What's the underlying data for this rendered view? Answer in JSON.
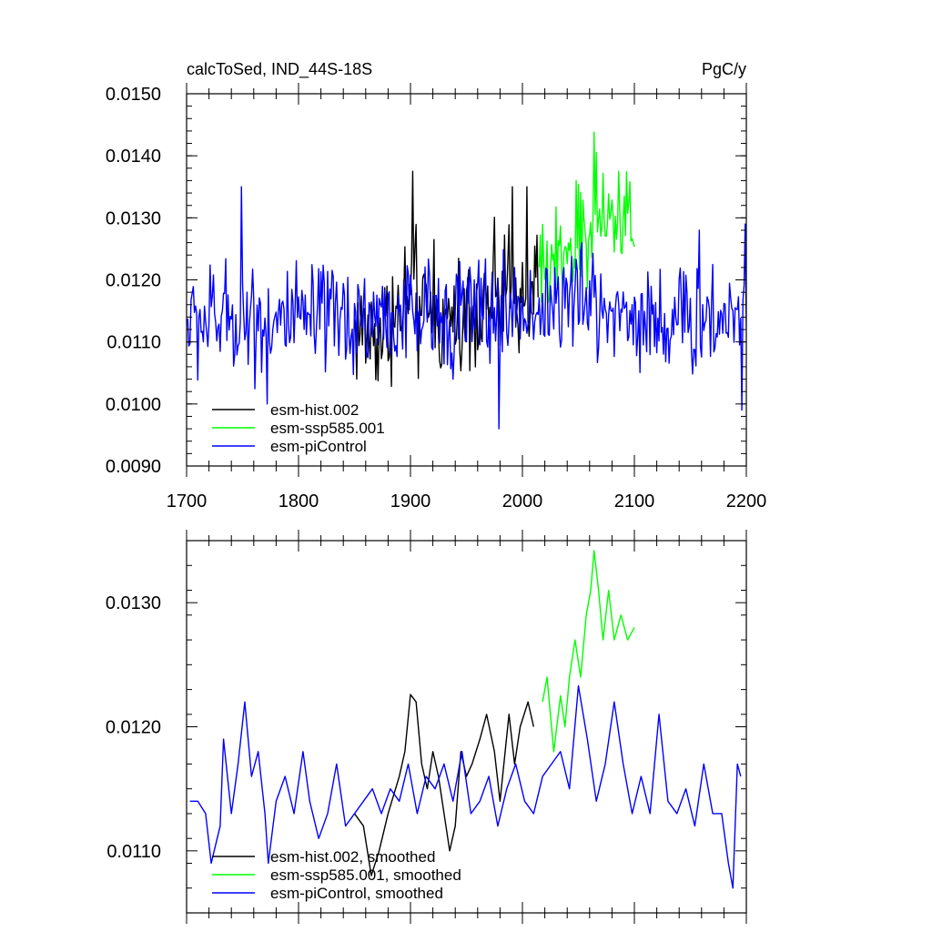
{
  "chart_data": [
    {
      "type": "line",
      "title": "calcToSed, IND_44S-18S",
      "units": "PgC/y",
      "xlim": [
        1700,
        2200
      ],
      "ylim": [
        0.009,
        0.015
      ],
      "x_ticks": [
        1700,
        1800,
        1900,
        2000,
        2100,
        2200
      ],
      "x_tick_labels": [
        "1700",
        "1800",
        "1900",
        "2000",
        "2100",
        "2200"
      ],
      "y_ticks": [
        0.009,
        0.01,
        0.011,
        0.012,
        0.013,
        0.014,
        0.015
      ],
      "y_tick_labels": [
        "0.0090",
        "0.0100",
        "0.0110",
        "0.0120",
        "0.0130",
        "0.0140",
        "0.0150"
      ],
      "legend_position": "bottom-left",
      "series": [
        {
          "name": "esm-hist.002",
          "color": "#000000",
          "x_range": [
            1850,
            2014
          ],
          "base_points": [
            [
              1850,
              0.0112
            ],
            [
              1870,
              0.0111
            ],
            [
              1890,
              0.0114
            ],
            [
              1900,
              0.0118
            ],
            [
              1910,
              0.0115
            ],
            [
              1930,
              0.0113
            ],
            [
              1950,
              0.0115
            ],
            [
              1970,
              0.0117
            ],
            [
              1990,
              0.0117
            ],
            [
              2014,
              0.0119
            ]
          ],
          "noise": 0.0006,
          "spikes": [
            [
              1902,
              0.01375
            ],
            [
              1921,
              0.01265
            ],
            [
              1991,
              0.0135
            ],
            [
              2004,
              0.0135
            ]
          ],
          "min_clip": 0.0102
        },
        {
          "name": "esm-ssp585.001",
          "color": "#00ff00",
          "x_range": [
            2015,
            2100
          ],
          "base_points": [
            [
              2015,
              0.0121
            ],
            [
              2030,
              0.0123
            ],
            [
              2050,
              0.0127
            ],
            [
              2065,
              0.013
            ],
            [
              2080,
              0.0129
            ],
            [
              2100,
              0.0129
            ]
          ],
          "noise": 0.0005,
          "spikes": [
            [
              2064,
              0.01438
            ],
            [
              2048,
              0.0136
            ],
            [
              2086,
              0.01375
            ]
          ],
          "min_clip": 0.0116
        },
        {
          "name": "esm-piControl",
          "color": "#0000ff",
          "x_range": [
            1701,
            2200
          ],
          "base_points": [
            [
              1700,
              0.0113
            ],
            [
              1750,
              0.0114
            ],
            [
              1800,
              0.0113
            ],
            [
              1850,
              0.0114
            ],
            [
              1900,
              0.0114
            ],
            [
              1950,
              0.0115
            ],
            [
              2000,
              0.0115
            ],
            [
              2050,
              0.0117
            ],
            [
              2100,
              0.0114
            ],
            [
              2150,
              0.0113
            ],
            [
              2200,
              0.0115
            ]
          ],
          "noise": 0.00055,
          "spikes": [
            [
              1749,
              0.0135
            ],
            [
              1979,
              0.0096
            ],
            [
              1772,
              0.01
            ],
            [
              2196,
              0.0099
            ],
            [
              2199,
              0.0129
            ],
            [
              2158,
              0.0128
            ]
          ],
          "min_clip": 0.0097
        }
      ]
    },
    {
      "type": "line",
      "xlim": [
        1700,
        2200
      ],
      "ylim": [
        0.0105,
        0.0135
      ],
      "y_ticks": [
        0.011,
        0.012,
        0.013
      ],
      "y_tick_labels": [
        "0.0110",
        "0.0120",
        "0.0130"
      ],
      "legend_position": "bottom-left",
      "series": [
        {
          "name": "esm-hist.002, smoothed",
          "color": "#000000",
          "x_range": [
            1850,
            2010
          ],
          "points": [
            [
              1850,
              0.0113
            ],
            [
              1858,
              0.0112
            ],
            [
              1865,
              0.0108
            ],
            [
              1872,
              0.011
            ],
            [
              1880,
              0.0113
            ],
            [
              1890,
              0.0116
            ],
            [
              1895,
              0.0118
            ],
            [
              1900,
              0.01226
            ],
            [
              1905,
              0.0122
            ],
            [
              1910,
              0.0117
            ],
            [
              1915,
              0.0115
            ],
            [
              1920,
              0.0118
            ],
            [
              1925,
              0.0116
            ],
            [
              1930,
              0.0113
            ],
            [
              1935,
              0.011
            ],
            [
              1940,
              0.0112
            ],
            [
              1945,
              0.0118
            ],
            [
              1950,
              0.0116
            ],
            [
              1955,
              0.0117
            ],
            [
              1962,
              0.0119
            ],
            [
              1968,
              0.0121
            ],
            [
              1975,
              0.0118
            ],
            [
              1980,
              0.0114
            ],
            [
              1988,
              0.0121
            ],
            [
              1993,
              0.0117
            ],
            [
              1998,
              0.012
            ],
            [
              2005,
              0.0122
            ],
            [
              2010,
              0.012
            ]
          ]
        },
        {
          "name": "esm-ssp585.001, smoothed",
          "color": "#00ff00",
          "x_range": [
            2018,
            2100
          ],
          "points": [
            [
              2018,
              0.0122
            ],
            [
              2022,
              0.0124
            ],
            [
              2028,
              0.0118
            ],
            [
              2034,
              0.01225
            ],
            [
              2038,
              0.012
            ],
            [
              2042,
              0.0124
            ],
            [
              2047,
              0.0127
            ],
            [
              2052,
              0.0124
            ],
            [
              2057,
              0.0129
            ],
            [
              2061,
              0.0131
            ],
            [
              2064,
              0.01342
            ],
            [
              2068,
              0.0131
            ],
            [
              2072,
              0.0127
            ],
            [
              2077,
              0.0131
            ],
            [
              2082,
              0.0127
            ],
            [
              2088,
              0.0129
            ],
            [
              2094,
              0.0127
            ],
            [
              2100,
              0.0128
            ]
          ]
        },
        {
          "name": "esm-piControl, smoothed",
          "color": "#0000ff",
          "x_range": [
            1703,
            2195
          ],
          "points": [
            [
              1703,
              0.0114
            ],
            [
              1710,
              0.0114
            ],
            [
              1717,
              0.0113
            ],
            [
              1722,
              0.0109
            ],
            [
              1730,
              0.0112
            ],
            [
              1733,
              0.0119
            ],
            [
              1740,
              0.0113
            ],
            [
              1746,
              0.0117
            ],
            [
              1752,
              0.0122
            ],
            [
              1758,
              0.0116
            ],
            [
              1764,
              0.0118
            ],
            [
              1770,
              0.0113
            ],
            [
              1773,
              0.0109
            ],
            [
              1780,
              0.0114
            ],
            [
              1788,
              0.0116
            ],
            [
              1796,
              0.0113
            ],
            [
              1804,
              0.0118
            ],
            [
              1810,
              0.0114
            ],
            [
              1818,
              0.0111
            ],
            [
              1826,
              0.0113
            ],
            [
              1834,
              0.0117
            ],
            [
              1842,
              0.0112
            ],
            [
              1850,
              0.0113
            ],
            [
              1858,
              0.0114
            ],
            [
              1866,
              0.0115
            ],
            [
              1874,
              0.0113
            ],
            [
              1882,
              0.0115
            ],
            [
              1890,
              0.0114
            ],
            [
              1898,
              0.0117
            ],
            [
              1906,
              0.0113
            ],
            [
              1914,
              0.0116
            ],
            [
              1922,
              0.0115
            ],
            [
              1930,
              0.0117
            ],
            [
              1938,
              0.0114
            ],
            [
              1946,
              0.0118
            ],
            [
              1954,
              0.0113
            ],
            [
              1962,
              0.0114
            ],
            [
              1970,
              0.0116
            ],
            [
              1978,
              0.0112
            ],
            [
              1986,
              0.0115
            ],
            [
              1994,
              0.0117
            ],
            [
              2002,
              0.0114
            ],
            [
              2010,
              0.0113
            ],
            [
              2018,
              0.0116
            ],
            [
              2026,
              0.0117
            ],
            [
              2034,
              0.0118
            ],
            [
              2042,
              0.0115
            ],
            [
              2050,
              0.01233
            ],
            [
              2058,
              0.0119
            ],
            [
              2066,
              0.0114
            ],
            [
              2074,
              0.0117
            ],
            [
              2082,
              0.0122
            ],
            [
              2090,
              0.0117
            ],
            [
              2098,
              0.0113
            ],
            [
              2106,
              0.0116
            ],
            [
              2114,
              0.0113
            ],
            [
              2122,
              0.0121
            ],
            [
              2130,
              0.0114
            ],
            [
              2138,
              0.0113
            ],
            [
              2146,
              0.0115
            ],
            [
              2154,
              0.0112
            ],
            [
              2162,
              0.0117
            ],
            [
              2170,
              0.0113
            ],
            [
              2178,
              0.0113
            ],
            [
              2184,
              0.0109
            ],
            [
              2188,
              0.0107
            ],
            [
              2192,
              0.0117
            ],
            [
              2195,
              0.0116
            ]
          ]
        }
      ]
    }
  ]
}
